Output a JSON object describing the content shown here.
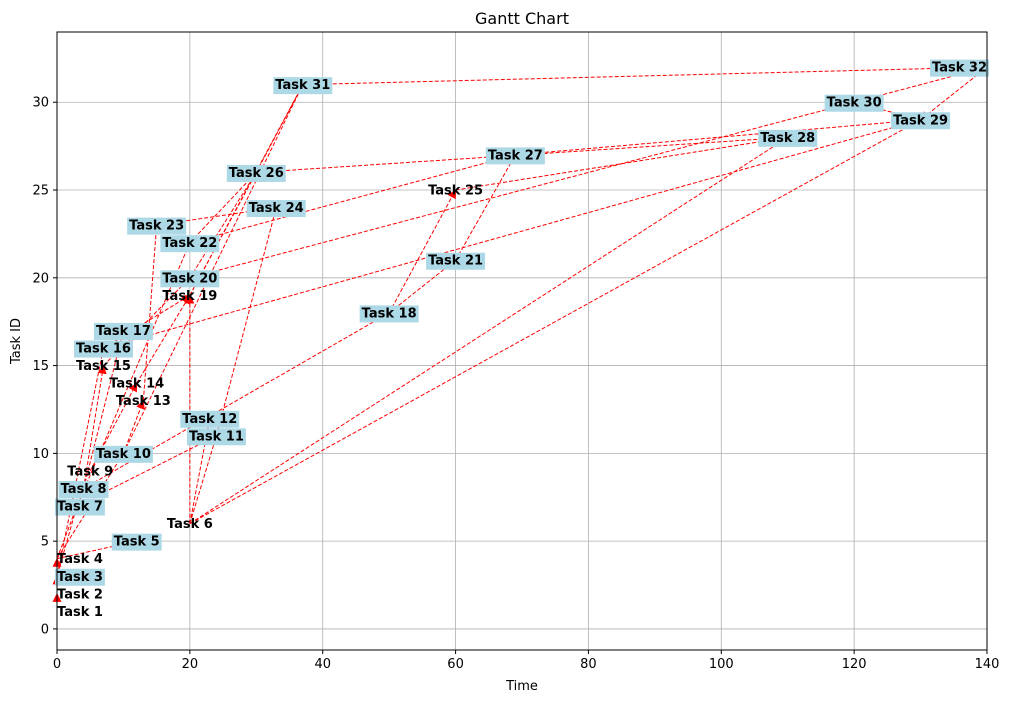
{
  "chart_data": {
    "type": "gantt",
    "title": "Gantt Chart",
    "xlabel": "Time",
    "ylabel": "Task ID",
    "xlim": [
      0,
      140
    ],
    "ylim": [
      -1.2,
      34
    ],
    "xticks": [
      0,
      20,
      40,
      60,
      80,
      100,
      120,
      140
    ],
    "yticks": [
      0,
      5,
      10,
      15,
      20,
      25,
      30
    ],
    "grid": true,
    "colors": {
      "dependency_arrow": "#ff0000",
      "label_box": "#add8e6",
      "grid": "#b0b0b0"
    },
    "tasks": [
      {
        "id": 1,
        "name": "Task 1",
        "start": 0,
        "boxed": false
      },
      {
        "id": 2,
        "name": "Task 2",
        "start": 0,
        "boxed": false
      },
      {
        "id": 3,
        "name": "Task 3",
        "start": 0,
        "boxed": true
      },
      {
        "id": 4,
        "name": "Task 4",
        "start": 0,
        "boxed": false
      },
      {
        "id": 5,
        "name": "Task 5",
        "start": 12,
        "boxed": true
      },
      {
        "id": 6,
        "name": "Task 6",
        "start": 20,
        "boxed": false
      },
      {
        "id": 7,
        "name": "Task 7",
        "start": 3,
        "boxed": true
      },
      {
        "id": 8,
        "name": "Task 8",
        "start": 4,
        "boxed": true
      },
      {
        "id": 9,
        "name": "Task 9",
        "start": 5,
        "boxed": false
      },
      {
        "id": 10,
        "name": "Task 10",
        "start": 10,
        "boxed": true
      },
      {
        "id": 11,
        "name": "Task 11",
        "start": 24,
        "boxed": true
      },
      {
        "id": 12,
        "name": "Task 12",
        "start": 23,
        "boxed": true
      },
      {
        "id": 13,
        "name": "Task 13",
        "start": 13,
        "boxed": false
      },
      {
        "id": 14,
        "name": "Task 14",
        "start": 12,
        "boxed": false
      },
      {
        "id": 15,
        "name": "Task 15",
        "start": 7,
        "boxed": false
      },
      {
        "id": 16,
        "name": "Task 16",
        "start": 7,
        "boxed": true
      },
      {
        "id": 17,
        "name": "Task 17",
        "start": 10,
        "boxed": true
      },
      {
        "id": 18,
        "name": "Task 18",
        "start": 50,
        "boxed": true
      },
      {
        "id": 19,
        "name": "Task 19",
        "start": 20,
        "boxed": false
      },
      {
        "id": 20,
        "name": "Task 20",
        "start": 20,
        "boxed": true
      },
      {
        "id": 21,
        "name": "Task 21",
        "start": 60,
        "boxed": true
      },
      {
        "id": 22,
        "name": "Task 22",
        "start": 20,
        "boxed": true
      },
      {
        "id": 23,
        "name": "Task 23",
        "start": 15,
        "boxed": true
      },
      {
        "id": 24,
        "name": "Task 24",
        "start": 33,
        "boxed": true
      },
      {
        "id": 25,
        "name": "Task 25",
        "start": 60,
        "boxed": false
      },
      {
        "id": 26,
        "name": "Task 26",
        "start": 30,
        "boxed": true
      },
      {
        "id": 27,
        "name": "Task 27",
        "start": 69,
        "boxed": true
      },
      {
        "id": 28,
        "name": "Task 28",
        "start": 110,
        "boxed": true
      },
      {
        "id": 29,
        "name": "Task 29",
        "start": 130,
        "boxed": true
      },
      {
        "id": 30,
        "name": "Task 30",
        "start": 120,
        "boxed": true
      },
      {
        "id": 31,
        "name": "Task 31",
        "start": 37,
        "boxed": true
      },
      {
        "id": 32,
        "name": "Task 32",
        "start": 140,
        "boxed": true
      }
    ],
    "dependencies": [
      {
        "from": 1,
        "to": 2
      },
      {
        "from": 2,
        "to": 3
      },
      {
        "from": 2,
        "to": 4
      },
      {
        "from": 3,
        "to": 7
      },
      {
        "from": 4,
        "to": 5
      },
      {
        "from": 4,
        "to": 8
      },
      {
        "from": 4,
        "to": 10
      },
      {
        "from": 3,
        "to": 16
      },
      {
        "from": 7,
        "to": 11
      },
      {
        "from": 8,
        "to": 18
      },
      {
        "from": 8,
        "to": 15
      },
      {
        "from": 8,
        "to": 17
      },
      {
        "from": 9,
        "to": 14
      },
      {
        "from": 10,
        "to": 13
      },
      {
        "from": 14,
        "to": 19
      },
      {
        "from": 15,
        "to": 20
      },
      {
        "from": 13,
        "to": 23
      },
      {
        "from": 7,
        "to": 22
      },
      {
        "from": 6,
        "to": 11
      },
      {
        "from": 6,
        "to": 12
      },
      {
        "from": 6,
        "to": 19
      },
      {
        "from": 6,
        "to": 29
      },
      {
        "from": 6,
        "to": 28
      },
      {
        "from": 16,
        "to": 19
      },
      {
        "from": 16,
        "to": 29
      },
      {
        "from": 19,
        "to": 26
      },
      {
        "from": 20,
        "to": 26
      },
      {
        "from": 20,
        "to": 30
      },
      {
        "from": 19,
        "to": 31
      },
      {
        "from": 22,
        "to": 26
      },
      {
        "from": 22,
        "to": 27
      },
      {
        "from": 23,
        "to": 24
      },
      {
        "from": 11,
        "to": 24
      },
      {
        "from": 10,
        "to": 31
      },
      {
        "from": 18,
        "to": 21
      },
      {
        "from": 21,
        "to": 27
      },
      {
        "from": 18,
        "to": 25
      },
      {
        "from": 25,
        "to": 28
      },
      {
        "from": 26,
        "to": 28
      },
      {
        "from": 26,
        "to": 31
      },
      {
        "from": 27,
        "to": 29
      },
      {
        "from": 29,
        "to": 30
      },
      {
        "from": 30,
        "to": 32
      },
      {
        "from": 31,
        "to": 32
      },
      {
        "from": 32,
        "to": 29
      }
    ]
  }
}
